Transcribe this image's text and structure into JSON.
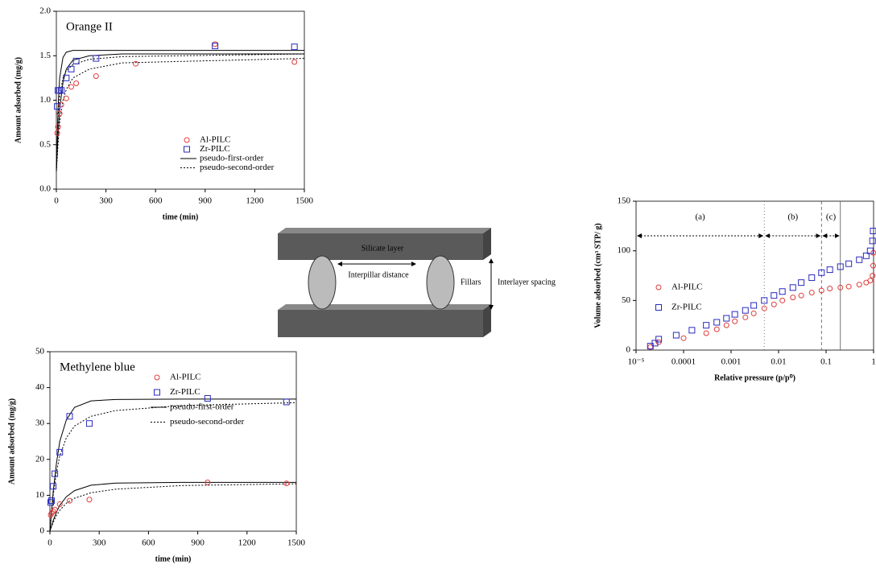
{
  "chart_data": [
    {
      "type": "scatter",
      "title": "Orange II",
      "x_label": "time (min)",
      "y_label": "Amount adsorbed (mg/g)",
      "xlim": [
        0,
        1500
      ],
      "xticks": [
        0,
        300,
        600,
        900,
        1200,
        1500
      ],
      "ylim": [
        0,
        2
      ],
      "yticks": [
        {
          "value": 0,
          "label": "0.0"
        },
        0.5,
        {
          "value": 1,
          "label": "1.0"
        },
        1.5,
        {
          "value": 2,
          "label": "2.0"
        }
      ],
      "series": [
        {
          "name": "Al-PILC",
          "color": "#e03c3c",
          "marker": "circle",
          "x": [
            5,
            10,
            20,
            30,
            60,
            90,
            120,
            240,
            480,
            960,
            1440
          ],
          "values": [
            0.63,
            0.7,
            0.85,
            0.95,
            1.02,
            1.15,
            1.19,
            1.27,
            1.41,
            1.63,
            1.43
          ]
        },
        {
          "name": "Zr-PILC",
          "color": "#2a2ac0",
          "marker": "square",
          "x": [
            5,
            10,
            20,
            30,
            60,
            90,
            120,
            240,
            960,
            1440
          ],
          "values": [
            0.93,
            1.11,
            1.11,
            1.11,
            1.25,
            1.35,
            1.44,
            1.47,
            1.61,
            1.6
          ]
        }
      ],
      "fits": [
        {
          "name": "pseudo-first-order",
          "dash": "none",
          "curves": [
            {
              "x": [
                0,
                10,
                20,
                40,
                60,
                100,
                200,
                400,
                1500
              ],
              "y": [
                0.2,
                0.9,
                1.25,
                1.48,
                1.54,
                1.56,
                1.56,
                1.56,
                1.56
              ]
            },
            {
              "x": [
                0,
                10,
                20,
                40,
                60,
                100,
                200,
                400,
                1500
              ],
              "y": [
                0.2,
                0.6,
                0.9,
                1.2,
                1.35,
                1.45,
                1.5,
                1.52,
                1.52
              ]
            }
          ]
        },
        {
          "name": "pseudo-second-order",
          "dash": "2 2",
          "curves": [
            {
              "x": [
                0,
                10,
                20,
                40,
                60,
                100,
                200,
                400,
                1500
              ],
              "y": [
                0.2,
                0.8,
                1.05,
                1.25,
                1.33,
                1.4,
                1.46,
                1.49,
                1.52
              ]
            },
            {
              "x": [
                0,
                10,
                20,
                40,
                60,
                100,
                200,
                400,
                1500
              ],
              "y": [
                0.2,
                0.5,
                0.75,
                1.0,
                1.12,
                1.25,
                1.35,
                1.42,
                1.47
              ]
            }
          ]
        }
      ]
    },
    {
      "type": "scatter",
      "title": "Methylene blue",
      "x_label": "time (min)",
      "y_label": "Amount adsorbed (mg/g)",
      "xlim": [
        0,
        1500
      ],
      "xticks": [
        0,
        300,
        600,
        900,
        1200,
        1500
      ],
      "ylim": [
        0,
        50
      ],
      "yticks": [
        0,
        10,
        20,
        30,
        40,
        50
      ],
      "series": [
        {
          "name": "Al-PILC",
          "color": "#e03c3c",
          "marker": "circle",
          "x": [
            5,
            10,
            20,
            30,
            60,
            120,
            240,
            960,
            1440
          ],
          "values": [
            4.5,
            5,
            5.5,
            6,
            7.5,
            8.5,
            8.8,
            13.6,
            13.3
          ]
        },
        {
          "name": "Zr-PILC",
          "color": "#2a2ac0",
          "marker": "square",
          "x": [
            5,
            10,
            20,
            30,
            60,
            120,
            240,
            960,
            1440
          ],
          "values": [
            8,
            8.5,
            12.5,
            16,
            22,
            32,
            30,
            37,
            36
          ]
        }
      ],
      "fits": [
        {
          "name": "pseudo-first-order",
          "dash": "none",
          "curves": [
            {
              "x": [
                0,
                20,
                40,
                60,
                100,
                150,
                250,
                400,
                800,
                1500
              ],
              "y": [
                0,
                11,
                19,
                25,
                31,
                34.5,
                36.3,
                36.7,
                36.8,
                36.8
              ]
            },
            {
              "x": [
                0,
                20,
                40,
                60,
                100,
                150,
                250,
                400,
                800,
                1500
              ],
              "y": [
                0,
                3,
                5.3,
                7.2,
                9.6,
                11.3,
                12.8,
                13.4,
                13.6,
                13.6
              ]
            }
          ]
        },
        {
          "name": "pseudo-second-order",
          "dash": "2 2",
          "curves": [
            {
              "x": [
                0,
                20,
                40,
                60,
                100,
                150,
                250,
                400,
                800,
                1500
              ],
              "y": [
                0,
                10,
                16.5,
                21,
                26,
                29.3,
                32,
                33.6,
                35,
                35.8
              ]
            },
            {
              "x": [
                0,
                20,
                40,
                60,
                100,
                150,
                250,
                400,
                800,
                1500
              ],
              "y": [
                0,
                2.5,
                4.4,
                5.8,
                7.8,
                9.2,
                10.7,
                11.7,
                12.7,
                13.2
              ]
            }
          ]
        }
      ]
    },
    {
      "type": "scatter",
      "x_label": "Relative pressure (p/p⁰)",
      "y_label": "Volume adsorbed (cm³ STP/ g)",
      "xscale": "log",
      "xlim": [
        1e-05,
        1
      ],
      "xticks": [
        {
          "value": 1e-05,
          "label": "10⁻⁵"
        },
        0.0001,
        0.001,
        0.01,
        0.1,
        1
      ],
      "ylim": [
        0,
        150
      ],
      "yticks": [
        0,
        50,
        100,
        150
      ],
      "series": [
        {
          "name": "Al-PILC",
          "color": "#e03c3c",
          "marker": "circle",
          "x": [
            2e-05,
            3e-05,
            0.0001,
            0.0003,
            0.0005,
            0.0008,
            0.0012,
            0.002,
            0.003,
            0.005,
            0.008,
            0.012,
            0.02,
            0.03,
            0.05,
            0.08,
            0.12,
            0.2,
            0.3,
            0.5,
            0.7,
            0.85,
            0.95,
            0.98,
            0.99
          ],
          "values": [
            3,
            8,
            12,
            17,
            21,
            25,
            29,
            33,
            37,
            42,
            46,
            50,
            53,
            55,
            58,
            60,
            62,
            63,
            64,
            66,
            68,
            70,
            75,
            85,
            98
          ]
        },
        {
          "name": "Zr-PILC",
          "color": "#2a2ac0",
          "marker": "square",
          "x": [
            2e-05,
            2.5e-05,
            3e-05,
            7e-05,
            0.00015,
            0.0003,
            0.0005,
            0.0008,
            0.0012,
            0.002,
            0.003,
            0.005,
            0.008,
            0.012,
            0.02,
            0.03,
            0.05,
            0.08,
            0.12,
            0.2,
            0.3,
            0.5,
            0.7,
            0.85,
            0.95,
            0.98
          ],
          "values": [
            4,
            7,
            11,
            15,
            20,
            25,
            28,
            32,
            36,
            40,
            45,
            50,
            55,
            59,
            63,
            68,
            73,
            78,
            81,
            84,
            87,
            91,
            95,
            100,
            110,
            120
          ]
        }
      ],
      "regions": [
        {
          "label": "(a)",
          "from": 1e-05,
          "to": 0.005,
          "dash": "1 3"
        },
        {
          "label": "(b)",
          "from": 0.005,
          "to": 0.08,
          "dash": "4 3"
        },
        {
          "label": "(c)",
          "from": 0.08,
          "to": 0.2,
          "dash": "none"
        }
      ]
    }
  ],
  "diagram": {
    "silicate_layer": "Silicate layer",
    "interpillar_distance": "Interpillar distance",
    "fillars": "Fillars",
    "interlayer_spacing": "Interlayer spacing"
  }
}
